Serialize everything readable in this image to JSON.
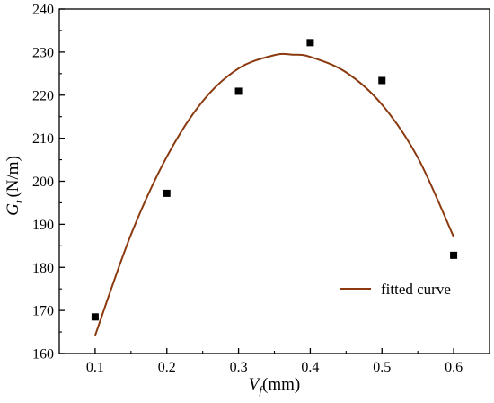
{
  "chart_data": {
    "type": "scatter",
    "title": "",
    "xlabel": {
      "symbol": "V",
      "subscript": "f",
      "unit": "(mm)"
    },
    "ylabel": {
      "symbol": "G",
      "subscript": "t",
      "unit": "(N/m)"
    },
    "xlim": [
      0.05,
      0.65
    ],
    "ylim": [
      160,
      240
    ],
    "x_ticks": [
      "0.1",
      "0.2",
      "0.3",
      "0.4",
      "0.5",
      "0.6"
    ],
    "y_ticks": [
      "160",
      "170",
      "180",
      "190",
      "200",
      "210",
      "220",
      "230",
      "240"
    ],
    "grid": false,
    "legend_position": "bottom-right",
    "series": [
      {
        "kind": "points",
        "marker": "square",
        "color": "#000000",
        "x": [
          0.1,
          0.2,
          0.3,
          0.4,
          0.5,
          0.6
        ],
        "y": [
          168.5,
          197.2,
          220.9,
          232.2,
          223.4,
          182.8
        ]
      },
      {
        "name": "fitted curve",
        "kind": "line",
        "color": "#8B3A0F",
        "x": [
          0.1,
          0.15,
          0.2,
          0.25,
          0.3,
          0.35,
          0.375,
          0.4,
          0.45,
          0.5,
          0.55,
          0.6
        ],
        "y": [
          164.2,
          187.6,
          205.7,
          218.6,
          226.2,
          229.3,
          229.4,
          228.9,
          225.3,
          217.8,
          205.5,
          187.1
        ]
      }
    ]
  }
}
